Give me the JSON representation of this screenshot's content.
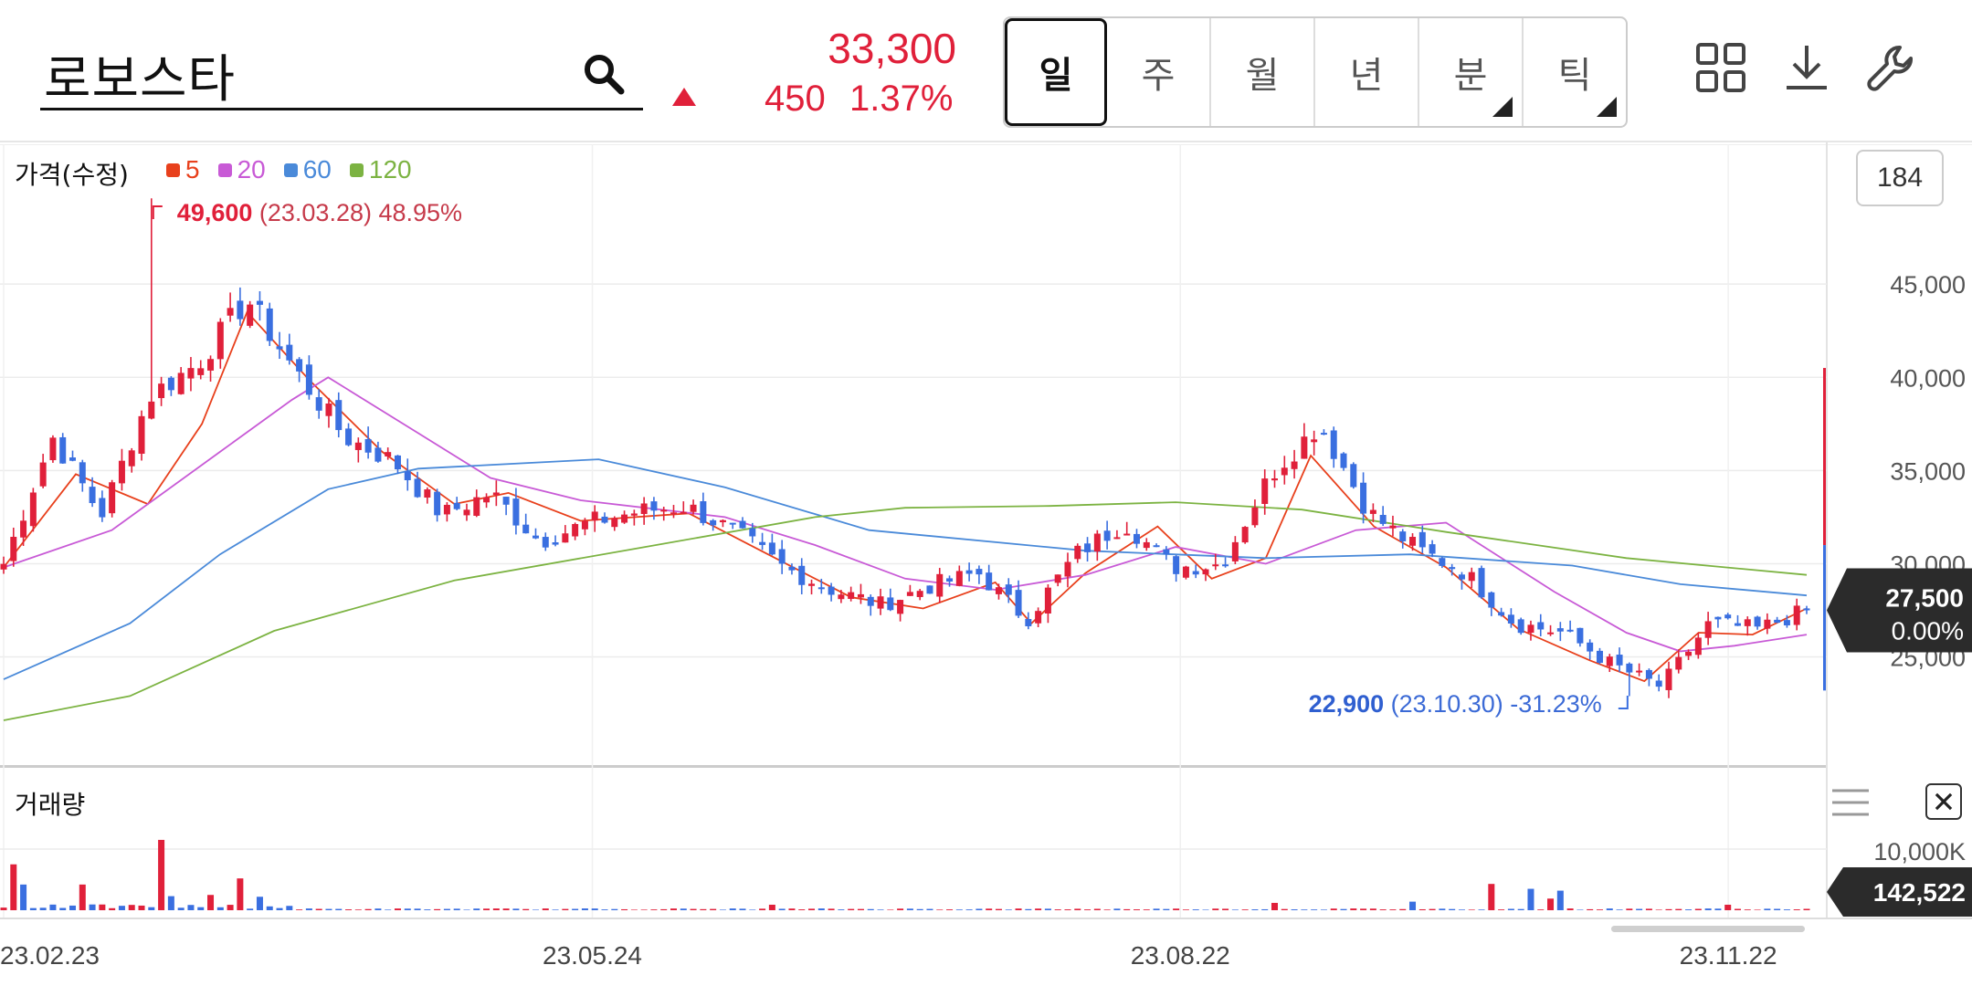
{
  "header": {
    "search_value": "로보스타",
    "price": "33,300",
    "change": "450",
    "change_pct": "1.37%",
    "periods": [
      {
        "label": "일",
        "active": true,
        "has_submenu": false
      },
      {
        "label": "주",
        "active": false,
        "has_submenu": false
      },
      {
        "label": "월",
        "active": false,
        "has_submenu": false
      },
      {
        "label": "년",
        "active": false,
        "has_submenu": false
      },
      {
        "label": "분",
        "active": false,
        "has_submenu": true
      },
      {
        "label": "틱",
        "active": false,
        "has_submenu": true
      }
    ],
    "tools": [
      "grid-icon",
      "download-icon",
      "wrench-icon"
    ]
  },
  "price_panel": {
    "label": "가격(수정)",
    "legend": [
      {
        "label": "5",
        "color": "#e8401c"
      },
      {
        "label": "20",
        "color": "#c85ad6"
      },
      {
        "label": "60",
        "color": "#4a8ad9"
      },
      {
        "label": "120",
        "color": "#7cb342"
      }
    ],
    "count_button": "184",
    "current_price": "27,500",
    "current_change": "0.00%",
    "high_annotation": {
      "price": "49,600",
      "date": "(23.03.28)",
      "pct": "48.95%"
    },
    "low_annotation": {
      "price": "22,900",
      "date": "(23.10.30)",
      "pct": "-31.23%"
    }
  },
  "volume_panel": {
    "label": "거래량",
    "axis_label": "10,000K",
    "current_volume": "142,522"
  },
  "colors": {
    "up": "#e0203a",
    "down": "#3a6fe0"
  },
  "chart_data": {
    "type": "candlestick",
    "y_ticks": [
      "45,000",
      "40,000",
      "35,000",
      "30,000",
      "25,000"
    ],
    "y_tick_values": [
      45000,
      40000,
      35000,
      30000,
      25000
    ],
    "ylim": [
      19200,
      52500
    ],
    "x_ticks": [
      "23.02.23",
      "23.05.24",
      "23.08.22",
      "23.11.22"
    ],
    "grid": true,
    "close_anchors": [
      {
        "date": "23.02.23",
        "close": 30000
      },
      {
        "date": "23.03.03",
        "close": 36800
      },
      {
        "date": "23.03.10",
        "close": 32600
      },
      {
        "date": "23.03.17",
        "close": 39000
      },
      {
        "date": "23.03.24",
        "close": 40800
      },
      {
        "date": "23.03.28",
        "close": 44200
      },
      {
        "date": "23.04.05",
        "close": 40300
      },
      {
        "date": "23.04.14",
        "close": 36800
      },
      {
        "date": "23.04.21",
        "close": 35500
      },
      {
        "date": "23.05.02",
        "close": 32600
      },
      {
        "date": "23.05.10",
        "close": 33800
      },
      {
        "date": "23.05.18",
        "close": 31200
      },
      {
        "date": "23.05.24",
        "close": 32200
      },
      {
        "date": "23.06.02",
        "close": 32800
      },
      {
        "date": "23.06.09",
        "close": 33100
      },
      {
        "date": "23.06.16",
        "close": 31700
      },
      {
        "date": "23.06.23",
        "close": 29800
      },
      {
        "date": "23.06.30",
        "close": 28600
      },
      {
        "date": "23.07.07",
        "close": 27800
      },
      {
        "date": "23.07.14",
        "close": 28800
      },
      {
        "date": "23.07.21",
        "close": 29500
      },
      {
        "date": "23.07.28",
        "close": 27000
      },
      {
        "date": "23.08.04",
        "close": 30500
      },
      {
        "date": "23.08.11",
        "close": 32200
      },
      {
        "date": "23.08.22",
        "close": 29800
      },
      {
        "date": "23.08.29",
        "close": 30000
      },
      {
        "date": "23.09.05",
        "close": 34800
      },
      {
        "date": "23.09.08",
        "close": 37500
      },
      {
        "date": "23.09.13",
        "close": 32800
      },
      {
        "date": "23.09.20",
        "close": 30800
      },
      {
        "date": "23.09.27",
        "close": 29500
      },
      {
        "date": "23.10.06",
        "close": 26800
      },
      {
        "date": "23.10.13",
        "close": 26300
      },
      {
        "date": "23.10.20",
        "close": 24600
      },
      {
        "date": "23.10.30",
        "close": 23400
      },
      {
        "date": "23.11.06",
        "close": 26800
      },
      {
        "date": "23.11.13",
        "close": 26500
      },
      {
        "date": "23.11.22",
        "close": 27500
      }
    ],
    "ma_lines": [
      {
        "name": "5",
        "color": "#e8401c",
        "points": [
          [
            0,
            29800
          ],
          [
            0.04,
            34800
          ],
          [
            0.08,
            33200
          ],
          [
            0.11,
            37500
          ],
          [
            0.135,
            43500
          ],
          [
            0.17,
            39800
          ],
          [
            0.21,
            36000
          ],
          [
            0.25,
            33200
          ],
          [
            0.28,
            33800
          ],
          [
            0.32,
            32300
          ],
          [
            0.38,
            32700
          ],
          [
            0.42,
            30700
          ],
          [
            0.47,
            28200
          ],
          [
            0.51,
            27600
          ],
          [
            0.55,
            29000
          ],
          [
            0.57,
            26800
          ],
          [
            0.6,
            29500
          ],
          [
            0.64,
            32000
          ],
          [
            0.67,
            29200
          ],
          [
            0.7,
            30300
          ],
          [
            0.725,
            35800
          ],
          [
            0.76,
            32000
          ],
          [
            0.8,
            29800
          ],
          [
            0.84,
            26500
          ],
          [
            0.88,
            24800
          ],
          [
            0.91,
            23700
          ],
          [
            0.94,
            26300
          ],
          [
            0.97,
            26200
          ],
          [
            1,
            27600
          ]
        ]
      },
      {
        "name": "20",
        "color": "#c85ad6",
        "points": [
          [
            0,
            29800
          ],
          [
            0.06,
            31800
          ],
          [
            0.12,
            36000
          ],
          [
            0.16,
            38800
          ],
          [
            0.18,
            40000
          ],
          [
            0.23,
            37000
          ],
          [
            0.27,
            34600
          ],
          [
            0.32,
            33400
          ],
          [
            0.4,
            32500
          ],
          [
            0.45,
            31000
          ],
          [
            0.5,
            29200
          ],
          [
            0.55,
            28600
          ],
          [
            0.6,
            29400
          ],
          [
            0.65,
            30900
          ],
          [
            0.7,
            30000
          ],
          [
            0.75,
            31800
          ],
          [
            0.8,
            32200
          ],
          [
            0.86,
            28500
          ],
          [
            0.9,
            26300
          ],
          [
            0.93,
            25300
          ],
          [
            0.96,
            25600
          ],
          [
            1,
            26200
          ]
        ]
      },
      {
        "name": "60",
        "color": "#4a8ad9",
        "points": [
          [
            0,
            23800
          ],
          [
            0.07,
            26800
          ],
          [
            0.12,
            30500
          ],
          [
            0.18,
            34000
          ],
          [
            0.23,
            35100
          ],
          [
            0.33,
            35600
          ],
          [
            0.4,
            34100
          ],
          [
            0.48,
            31800
          ],
          [
            0.6,
            30700
          ],
          [
            0.7,
            30300
          ],
          [
            0.78,
            30500
          ],
          [
            0.87,
            29900
          ],
          [
            0.93,
            28900
          ],
          [
            1,
            28300
          ]
        ]
      },
      {
        "name": "120",
        "color": "#7cb342",
        "points": [
          [
            0,
            21600
          ],
          [
            0.07,
            22900
          ],
          [
            0.15,
            26400
          ],
          [
            0.25,
            29100
          ],
          [
            0.35,
            30800
          ],
          [
            0.45,
            32500
          ],
          [
            0.5,
            33000
          ],
          [
            0.58,
            33100
          ],
          [
            0.65,
            33300
          ],
          [
            0.72,
            32900
          ],
          [
            0.8,
            31700
          ],
          [
            0.9,
            30300
          ],
          [
            1,
            29400
          ]
        ]
      }
    ],
    "volume": {
      "ylim": [
        0,
        10000
      ],
      "unit": "K",
      "spikes": [
        {
          "index": 1,
          "value": 7500,
          "up": true
        },
        {
          "index": 2,
          "value": 4200,
          "up": false
        },
        {
          "index": 8,
          "value": 4200,
          "up": true
        },
        {
          "index": 16,
          "value": 11500,
          "up": true
        },
        {
          "index": 17,
          "value": 2300,
          "up": false
        },
        {
          "index": 21,
          "value": 2500,
          "up": true
        },
        {
          "index": 24,
          "value": 5200,
          "up": true
        },
        {
          "index": 26,
          "value": 2200,
          "up": false
        },
        {
          "index": 78,
          "value": 900,
          "up": true
        },
        {
          "index": 129,
          "value": 1200,
          "up": true
        },
        {
          "index": 143,
          "value": 1400,
          "up": false
        },
        {
          "index": 151,
          "value": 4300,
          "up": true
        },
        {
          "index": 155,
          "value": 3500,
          "up": false
        },
        {
          "index": 157,
          "value": 1900,
          "up": true
        },
        {
          "index": 158,
          "value": 3200,
          "up": false
        },
        {
          "index": 175,
          "value": 900,
          "up": true
        },
        {
          "index": 199,
          "value": 1100,
          "up": true
        }
      ]
    }
  }
}
